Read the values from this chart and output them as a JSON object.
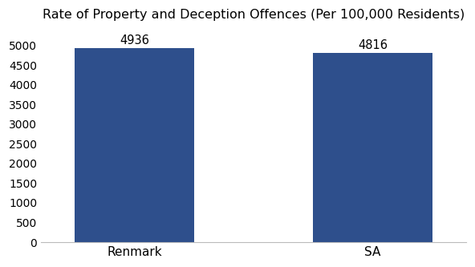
{
  "categories": [
    "Renmark",
    "SA"
  ],
  "values": [
    4936,
    4816
  ],
  "bar_color": "#2e4f8c",
  "title": "Rate of Property and Deception Offences (Per 100,000 Residents)",
  "title_fontsize": 11.5,
  "label_fontsize": 11,
  "value_fontsize": 10.5,
  "tick_fontsize": 10,
  "ylim": [
    0,
    5400
  ],
  "yticks": [
    0,
    500,
    1000,
    1500,
    2000,
    2500,
    3000,
    3500,
    4000,
    4500,
    5000
  ],
  "bar_width": 0.28,
  "x_positions": [
    0.22,
    0.78
  ],
  "xlim": [
    0,
    1
  ],
  "background_color": "#ffffff"
}
